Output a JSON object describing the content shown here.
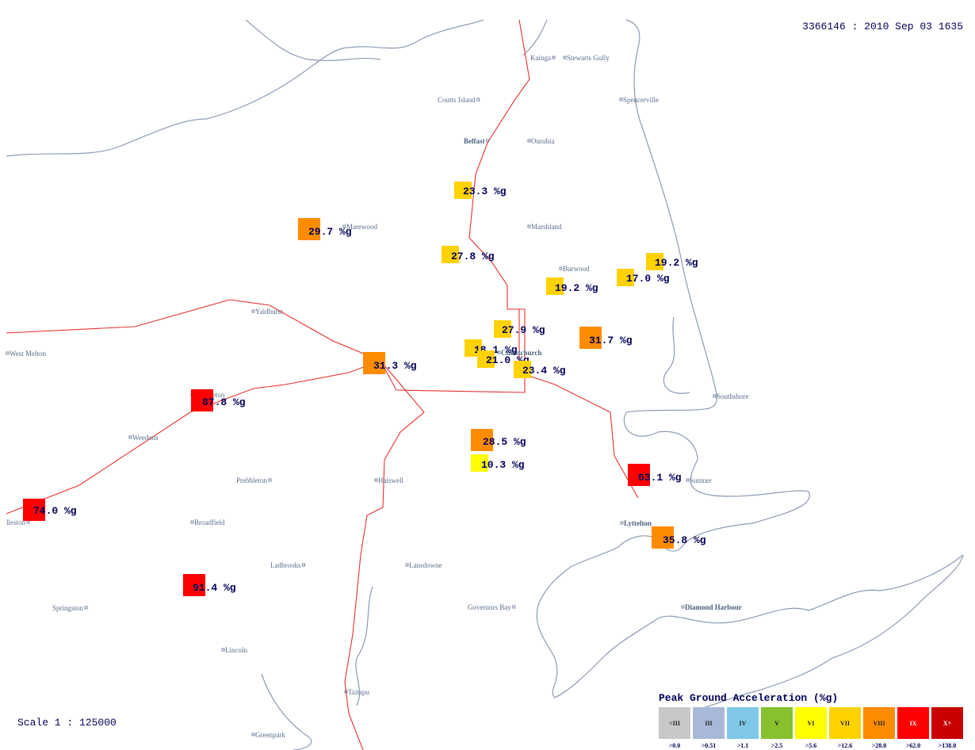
{
  "header": {
    "event": "3366146 : 2010 Sep 03 1635",
    "scale": "Scale 1 : 125000"
  },
  "places": [
    "Kainga",
    "Stewarts Gully",
    "Coutts Island",
    "Spencerville",
    "Belfast",
    "Ouruhia",
    "Marewood",
    "Marshland",
    "Burwood",
    "Yaldhurst",
    "West Melton",
    "Christchurch",
    "Templeton",
    "Southshore",
    "Weedons",
    "Prebbleton",
    "Halswell",
    "Sumner",
    "lleston",
    "Broadfield",
    "Lyttelton",
    "Ladbrooks",
    "Lansdowne",
    "Springston",
    "Governors Bay",
    "Diamond Harbour",
    "Lincoln",
    "Taitapu",
    "Greenpark"
  ],
  "stations": [
    {
      "label": "23.3 %g",
      "color": "#ffd200"
    },
    {
      "label": "29.7 %g",
      "color": "#ff8c00"
    },
    {
      "label": "27.8 %g",
      "color": "#ffd200"
    },
    {
      "label": "19.2 %g",
      "color": "#ffd200"
    },
    {
      "label": "17.0 %g",
      "color": "#ffd200"
    },
    {
      "label": "19.2 %g",
      "color": "#ffd200"
    },
    {
      "label": "27.9 %g",
      "color": "#ffd200"
    },
    {
      "label": "18.1 %g",
      "color": "#ffd200"
    },
    {
      "label": "21.0 %g",
      "color": "#ffd200"
    },
    {
      "label": "23.4 %g",
      "color": "#ffd200"
    },
    {
      "label": "31.7 %g",
      "color": "#ff8c00"
    },
    {
      "label": "31.3 %g",
      "color": "#ff8c00"
    },
    {
      "label": "87.8 %g",
      "color": "#ff0000"
    },
    {
      "label": "28.5 %g",
      "color": "#ff8c00"
    },
    {
      "label": "10.3 %g",
      "color": "#ffff00"
    },
    {
      "label": "63.1 %g",
      "color": "#ff0000"
    },
    {
      "label": "74.0 %g",
      "color": "#ff0000"
    },
    {
      "label": "35.8 %g",
      "color": "#ff8c00"
    },
    {
      "label": "91.4 %g",
      "color": "#ff0000"
    }
  ],
  "legend": {
    "title": "Peak Ground Acceleration (%g)",
    "items": [
      {
        "label": "<III",
        "threshold": ">0.0",
        "color": "#c8c8c8"
      },
      {
        "label": "III",
        "threshold": ">0.51",
        "color": "#a8b8d8"
      },
      {
        "label": "IV",
        "threshold": ">1.1",
        "color": "#80c8e8"
      },
      {
        "label": "V",
        "threshold": ">2.5",
        "color": "#88c030"
      },
      {
        "label": "VI",
        "threshold": ">5.6",
        "color": "#ffff00"
      },
      {
        "label": "VII",
        "threshold": ">12.6",
        "color": "#ffd200"
      },
      {
        "label": "VIII",
        "threshold": ">28.0",
        "color": "#ff8c00"
      },
      {
        "label": "IX",
        "threshold": ">62.0",
        "color": "#ff0000"
      },
      {
        "label": "X+",
        "threshold": ">138.0",
        "color": "#c80000"
      }
    ]
  }
}
